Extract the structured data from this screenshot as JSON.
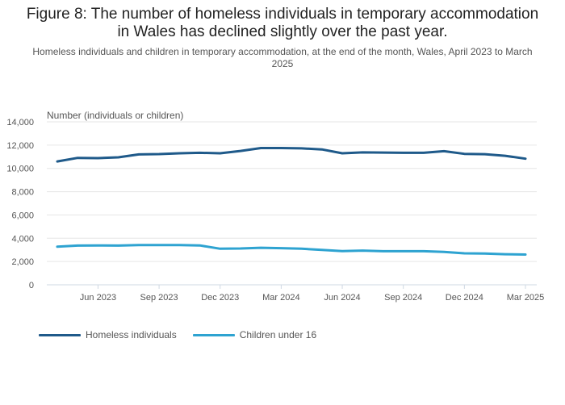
{
  "title": "Figure 8: The number of homeless individuals in temporary accommodation in Wales has declined slightly over the past year.",
  "subtitle": "Homeless individuals and children in temporary accommodation, at the end of the month, Wales, April 2023 to March 2025",
  "colors": {
    "homeless": "#1f5a8a",
    "children": "#2ea3d1",
    "grid": "#e6e6e6",
    "axis": "#cfd8e3"
  },
  "chart_data": {
    "type": "line",
    "title": "Figure 8: The number of homeless individuals in temporary accommodation in Wales has declined slightly over the past year.",
    "subtitle": "Homeless individuals and children in temporary accommodation, at the end of the month, Wales, April 2023 to March 2025",
    "xlabel": "",
    "ylabel": "Number (individuals or children)",
    "ylim": [
      0,
      14000
    ],
    "yticks": [
      0,
      2000,
      4000,
      6000,
      8000,
      10000,
      12000,
      14000
    ],
    "ytick_labels": [
      "0",
      "2,000",
      "4,000",
      "6,000",
      "8,000",
      "10,000",
      "12,000",
      "14,000"
    ],
    "x": [
      "Apr 2023",
      "May 2023",
      "Jun 2023",
      "Jul 2023",
      "Aug 2023",
      "Sep 2023",
      "Oct 2023",
      "Nov 2023",
      "Dec 2023",
      "Jan 2024",
      "Feb 2024",
      "Mar 2024",
      "Apr 2024",
      "May 2024",
      "Jun 2024",
      "Jul 2024",
      "Aug 2024",
      "Sep 2024",
      "Oct 2024",
      "Nov 2024",
      "Dec 2024",
      "Jan 2025",
      "Feb 2025",
      "Mar 2025"
    ],
    "xtick_labels": [
      "Jun 2023",
      "Sep 2023",
      "Dec 2023",
      "Mar 2024",
      "Jun 2024",
      "Sep 2024",
      "Dec 2024",
      "Mar 2025"
    ],
    "grid": true,
    "legend_position": "bottom-left",
    "series": [
      {
        "name": "Homeless individuals",
        "color": "#1f5a8a",
        "values": [
          10600,
          10900,
          10880,
          10950,
          11200,
          11230,
          11300,
          11340,
          11300,
          11500,
          11750,
          11750,
          11720,
          11630,
          11300,
          11370,
          11360,
          11340,
          11340,
          11480,
          11250,
          11220,
          11080,
          10830
        ]
      },
      {
        "name": "Children under 16",
        "color": "#2ea3d1",
        "values": [
          3270,
          3370,
          3380,
          3370,
          3420,
          3420,
          3420,
          3380,
          3100,
          3120,
          3180,
          3150,
          3100,
          3000,
          2900,
          2940,
          2880,
          2880,
          2880,
          2820,
          2700,
          2690,
          2630,
          2600
        ]
      }
    ]
  }
}
